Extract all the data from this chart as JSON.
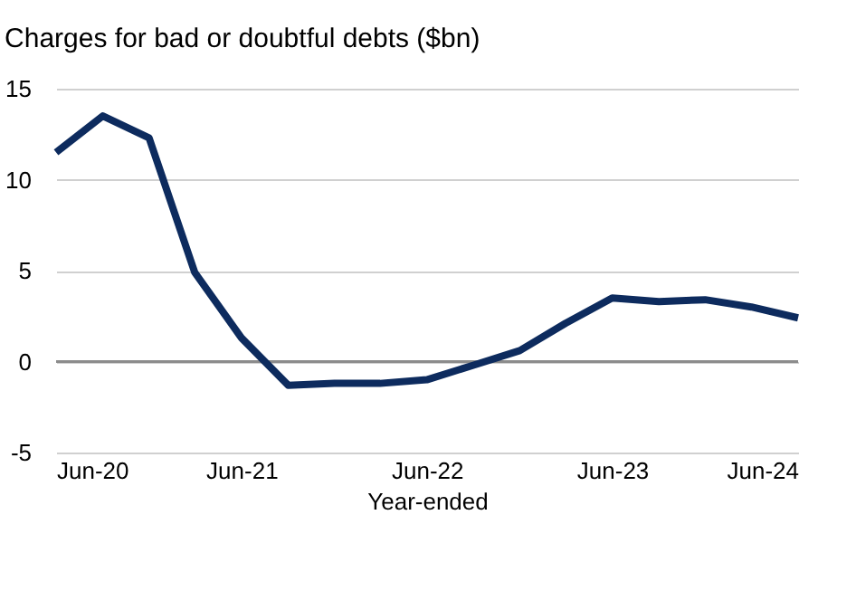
{
  "chart_data": {
    "type": "line",
    "title": "Charges for bad or doubtful debts ($bn)",
    "xlabel": "Year-ended",
    "x": [
      "2020-06",
      "2020-09",
      "2020-12",
      "2021-03",
      "2021-06",
      "2021-09",
      "2021-12",
      "2022-03",
      "2022-06",
      "2022-09",
      "2022-12",
      "2023-03",
      "2023-06",
      "2023-09",
      "2023-12",
      "2024-03",
      "2024-06"
    ],
    "series": [
      {
        "color": "#0d2b5e",
        "values": [
          11.5,
          13.5,
          12.3,
          4.9,
          1.3,
          -1.3,
          -1.2,
          -1.2,
          -1.0,
          -0.2,
          0.6,
          2.1,
          3.5,
          3.3,
          3.4,
          3.0,
          2.4
        ]
      }
    ],
    "xlim": [
      "2020-06",
      "2024-06"
    ],
    "xticks": [
      {
        "value": "2020-06",
        "label": "Jun-20"
      },
      {
        "value": "2021-06",
        "label": "Jun-21"
      },
      {
        "value": "2022-06",
        "label": "Jun-22"
      },
      {
        "value": "2023-06",
        "label": "Jun-23"
      },
      {
        "value": "2024-06",
        "label": "Jun-24"
      }
    ],
    "ylim": [
      -5,
      15
    ],
    "yticks": [
      -5,
      0,
      5,
      10,
      15
    ],
    "grid": "y",
    "marker": "none",
    "line_style": "solid",
    "ref_lines": [
      {
        "axis": "y",
        "value": 0,
        "color": "#8c8c8c"
      }
    ]
  }
}
